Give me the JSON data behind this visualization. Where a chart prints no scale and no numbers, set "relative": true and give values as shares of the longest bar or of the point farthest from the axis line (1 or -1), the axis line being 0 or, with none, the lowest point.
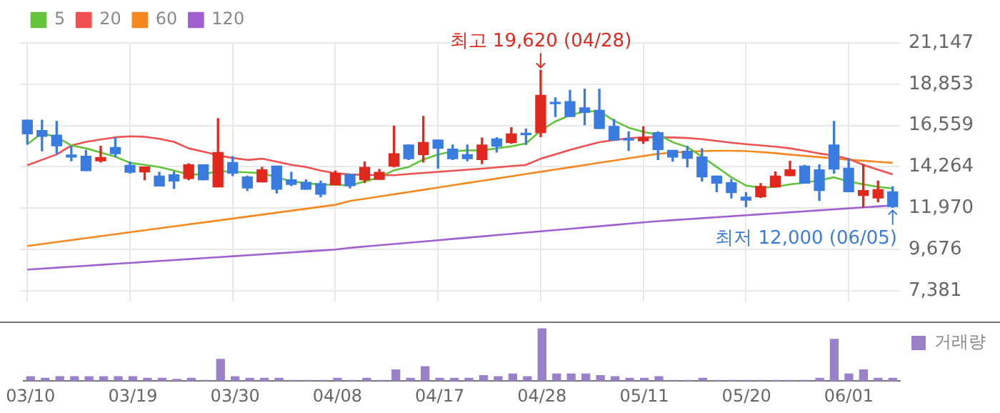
{
  "chart_data": [
    {
      "type": "candlestick",
      "categories": [
        "03/10",
        null,
        null,
        null,
        null,
        null,
        null,
        "03/19",
        null,
        null,
        null,
        null,
        null,
        null,
        "03/30",
        null,
        null,
        null,
        null,
        null,
        null,
        "04/08",
        null,
        null,
        null,
        null,
        null,
        null,
        "04/17",
        null,
        null,
        null,
        null,
        null,
        null,
        "04/28",
        null,
        null,
        null,
        null,
        null,
        null,
        "05/11",
        null,
        null,
        null,
        null,
        null,
        null,
        "05/20",
        null,
        null,
        null,
        null,
        null,
        null,
        "06/01",
        null,
        null,
        null
      ],
      "ohlc": [
        [
          16850,
          16850,
          15517,
          16092
        ],
        [
          16276,
          16850,
          15149,
          15954
        ],
        [
          16023,
          16781,
          15011,
          15425
        ],
        [
          14919,
          15402,
          14597,
          14804
        ],
        [
          14850,
          15172,
          14046,
          14046
        ],
        [
          14597,
          15402,
          14528,
          14781
        ],
        [
          15333,
          15862,
          14827,
          14988
        ],
        [
          14344,
          14528,
          13908,
          13954
        ],
        [
          13977,
          14252,
          13540,
          14252
        ],
        [
          13747,
          13954,
          13195,
          13195
        ],
        [
          13816,
          13977,
          13057,
          13471
        ],
        [
          13609,
          14436,
          13540,
          14367
        ],
        [
          14367,
          14367,
          13540,
          13540
        ],
        [
          13149,
          16942,
          13149,
          15057
        ],
        [
          14505,
          14827,
          13770,
          13908
        ],
        [
          13701,
          13747,
          12942,
          13080
        ],
        [
          13425,
          14230,
          13425,
          14092
        ],
        [
          14298,
          14298,
          12804,
          13011
        ],
        [
          13540,
          13954,
          13218,
          13287
        ],
        [
          13402,
          13540,
          13011,
          13011
        ],
        [
          13333,
          13471,
          12597,
          12735
        ],
        [
          13264,
          14023,
          13264,
          13908
        ],
        [
          13839,
          13839,
          13080,
          13218
        ],
        [
          13540,
          14528,
          13379,
          14230
        ],
        [
          13563,
          14115,
          13563,
          13954
        ],
        [
          14298,
          16529,
          14252,
          14988
        ],
        [
          15471,
          15471,
          14666,
          14712
        ],
        [
          14942,
          17057,
          14528,
          15609
        ],
        [
          15747,
          15747,
          14184,
          15287
        ],
        [
          15241,
          15471,
          14666,
          14712
        ],
        [
          14942,
          15471,
          14597,
          14712
        ],
        [
          14666,
          15862,
          14436,
          15471
        ],
        [
          15816,
          15885,
          15080,
          15402
        ],
        [
          15609,
          16437,
          15563,
          16092
        ],
        [
          16092,
          16368,
          15494,
          16046
        ],
        [
          16161,
          19620,
          15931,
          18230
        ],
        [
          17816,
          18092,
          17057,
          17770
        ],
        [
          17885,
          18506,
          17057,
          17057
        ],
        [
          17540,
          18575,
          16597,
          17287
        ],
        [
          17402,
          18575,
          16391,
          16391
        ],
        [
          16506,
          16896,
          15747,
          15747
        ],
        [
          15793,
          16207,
          15172,
          15747
        ],
        [
          15701,
          16483,
          15563,
          15885
        ],
        [
          16161,
          16207,
          14666,
          15218
        ],
        [
          15172,
          15172,
          14574,
          14804
        ],
        [
          15126,
          15402,
          14252,
          14735
        ],
        [
          14804,
          15264,
          13471,
          13701
        ],
        [
          13747,
          13747,
          12873,
          13356
        ],
        [
          13379,
          13563,
          12528,
          12827
        ],
        [
          12574,
          12827,
          12045,
          12413
        ],
        [
          12597,
          13333,
          12551,
          13172
        ],
        [
          13149,
          13977,
          13149,
          13747
        ],
        [
          13770,
          14574,
          13770,
          14092
        ],
        [
          14298,
          14344,
          13356,
          13356
        ],
        [
          14092,
          14367,
          12390,
          12942
        ],
        [
          15471,
          16781,
          13908,
          14138
        ],
        [
          14184,
          14712,
          12873,
          12873
        ],
        [
          12666,
          14367,
          12022,
          12942
        ],
        [
          12528,
          13471,
          12321,
          12988
        ],
        [
          12873,
          13149,
          12000,
          12050
        ]
      ],
      "series": [
        {
          "name": "5",
          "type": "line",
          "color": "#63c33b",
          "values": [
            15517,
            16138,
            15908,
            15448,
            15287,
            15050,
            14827,
            14482,
            14370,
            14252,
            14050,
            13839,
            13839,
            14023,
            13990,
            13954,
            13908,
            13680,
            13448,
            13360,
            13264,
            13264,
            13218,
            13448,
            13678,
            14069,
            14252,
            14666,
            14942,
            15126,
            15172,
            15172,
            15287,
            15402,
            15563,
            16276,
            16781,
            17126,
            17333,
            17356,
            16827,
            16437,
            16207,
            16046,
            15632,
            15356,
            14827,
            14252,
            13678,
            13218,
            13103,
            13149,
            13287,
            13379,
            13517,
            13678,
            13448,
            13287,
            13149,
            13057
          ]
        },
        {
          "name": "20",
          "type": "line",
          "color": "#f05050",
          "values": [
            14345,
            14650,
            14950,
            15448,
            15650,
            15780,
            15900,
            15954,
            15930,
            15816,
            15650,
            15287,
            15100,
            14900,
            14750,
            14643,
            14712,
            14550,
            14367,
            14250,
            14050,
            13900,
            13839,
            13810,
            13800,
            13793,
            13860,
            13920,
            13980,
            14040,
            14100,
            14160,
            14230,
            14300,
            14367,
            14712,
            14950,
            15200,
            15420,
            15632,
            15750,
            15850,
            15908,
            15900,
            15890,
            15862,
            15800,
            15700,
            15600,
            15517,
            15450,
            15380,
            15287,
            15150,
            15000,
            14896,
            14700,
            14367,
            14100,
            13838
          ]
        },
        {
          "name": "60",
          "type": "line",
          "color": "#f5891f",
          "values": [
            9861,
            9970,
            10079,
            10188,
            10297,
            10406,
            10515,
            10624,
            10733,
            10842,
            10951,
            11060,
            11169,
            11278,
            11387,
            11496,
            11605,
            11714,
            11823,
            11932,
            12041,
            12150,
            12360,
            12485,
            12610,
            12735,
            12860,
            12985,
            13110,
            13235,
            13360,
            13485,
            13610,
            13735,
            13860,
            13985,
            14110,
            14235,
            14360,
            14485,
            14610,
            14735,
            14860,
            14985,
            15050,
            15100,
            15130,
            15150,
            15150,
            15130,
            15080,
            15020,
            14940,
            14870,
            14800,
            14730,
            14650,
            14600,
            14540,
            14482
          ]
        },
        {
          "name": "120",
          "type": "line",
          "color": "#a060d0",
          "values": [
            8551,
            8604,
            8657,
            8710,
            8763,
            8816,
            8869,
            8922,
            8975,
            9028,
            9081,
            9134,
            9187,
            9240,
            9293,
            9346,
            9399,
            9452,
            9505,
            9558,
            9611,
            9664,
            9760,
            9831,
            9901,
            9972,
            10042,
            10113,
            10183,
            10254,
            10324,
            10395,
            10465,
            10536,
            10606,
            10677,
            10747,
            10818,
            10888,
            10959,
            11029,
            11100,
            11170,
            11241,
            11296,
            11350,
            11405,
            11459,
            11514,
            11569,
            11623,
            11678,
            11732,
            11787,
            11842,
            11896,
            11951,
            12005,
            12060,
            12114
          ]
        }
      ],
      "ylim": [
        6760,
        21147
      ],
      "yticks": [
        {
          "value": 7381,
          "label": "7,381"
        },
        {
          "value": 9676,
          "label": "9,676"
        },
        {
          "value": 11970,
          "label": "11,970"
        },
        {
          "value": 14264,
          "label": "14,264"
        },
        {
          "value": 16559,
          "label": "16,559"
        },
        {
          "value": 18853,
          "label": "18,853"
        },
        {
          "value": 21147,
          "label": "21,147"
        }
      ],
      "annotations": [
        {
          "text": "최고 19,620 (04/28)",
          "x": "04/28",
          "y": 19620
        },
        {
          "text": "최저 12,000 (06/05)",
          "y": 12000
        }
      ],
      "grid": true,
      "legend": "top left",
      "marker": "none",
      "line_style": "solid",
      "tick_labels": "y"
    },
    {
      "type": "bar",
      "relative": true,
      "categories": [
        "03/10",
        null,
        null,
        null,
        null,
        null,
        null,
        "03/19",
        null,
        null,
        null,
        null,
        null,
        null,
        "03/30",
        null,
        null,
        null,
        null,
        null,
        null,
        "04/08",
        null,
        null,
        null,
        null,
        null,
        null,
        "04/17",
        null,
        null,
        null,
        null,
        null,
        null,
        "04/28",
        null,
        null,
        null,
        null,
        null,
        null,
        "05/11",
        null,
        null,
        null,
        null,
        null,
        null,
        "05/20",
        null,
        null,
        null,
        null,
        null,
        null,
        "06/01",
        null,
        null,
        null
      ],
      "series": [
        {
          "name": "거래량",
          "color": "#9a80c8",
          "values": [
            0.09,
            0.06,
            0.09,
            0.09,
            0.09,
            0.09,
            0.09,
            0.09,
            0.06,
            0.06,
            0.04,
            0.06,
            0.02,
            0.42,
            0.09,
            0.06,
            0.06,
            0.06,
            0.02,
            0.02,
            0.02,
            0.06,
            0.02,
            0.06,
            0.02,
            0.22,
            0.06,
            0.28,
            0.06,
            0.06,
            0.06,
            0.11,
            0.09,
            0.14,
            0.09,
            1,
            0.14,
            0.14,
            0.14,
            0.11,
            0.09,
            0.06,
            0.06,
            0.09,
            0.02,
            0.02,
            0.06,
            0.02,
            0.02,
            0.02,
            0.02,
            0.02,
            0.02,
            0.02,
            0.06,
            0.8,
            0.14,
            0.22,
            0.06,
            0.06
          ]
        }
      ],
      "legend": "top right",
      "tick_labels": "x"
    }
  ]
}
